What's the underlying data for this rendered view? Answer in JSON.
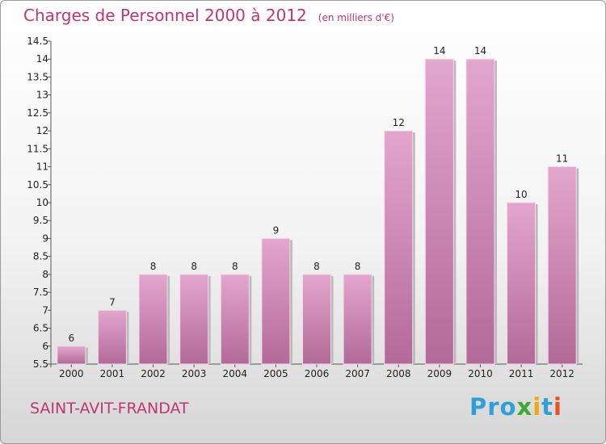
{
  "chart_data": {
    "type": "bar",
    "title": "Charges de Personnel 2000 à 2012",
    "unit_label": "(en milliers d'€)",
    "categories": [
      "2000",
      "2001",
      "2002",
      "2003",
      "2004",
      "2005",
      "2006",
      "2007",
      "2008",
      "2009",
      "2010",
      "2011",
      "2012"
    ],
    "values": [
      6,
      7,
      8,
      8,
      8,
      9,
      8,
      8,
      12,
      14,
      14,
      10,
      11
    ],
    "ylim": [
      5.5,
      14.5
    ],
    "yticks": [
      "5.5",
      "6",
      "6.5",
      "7",
      "7.5",
      "8",
      "8.5",
      "9",
      "9.5",
      "10",
      "10.5",
      "11",
      "11.5",
      "12",
      "12.5",
      "13",
      "13.5",
      "14",
      "14.5"
    ],
    "grid": false,
    "bar_color": "#d98fbe"
  },
  "footer": {
    "commune": "SAINT-AVIT-FRANDAT",
    "logo": [
      "Pro",
      "x",
      "i",
      "t",
      "i"
    ]
  }
}
